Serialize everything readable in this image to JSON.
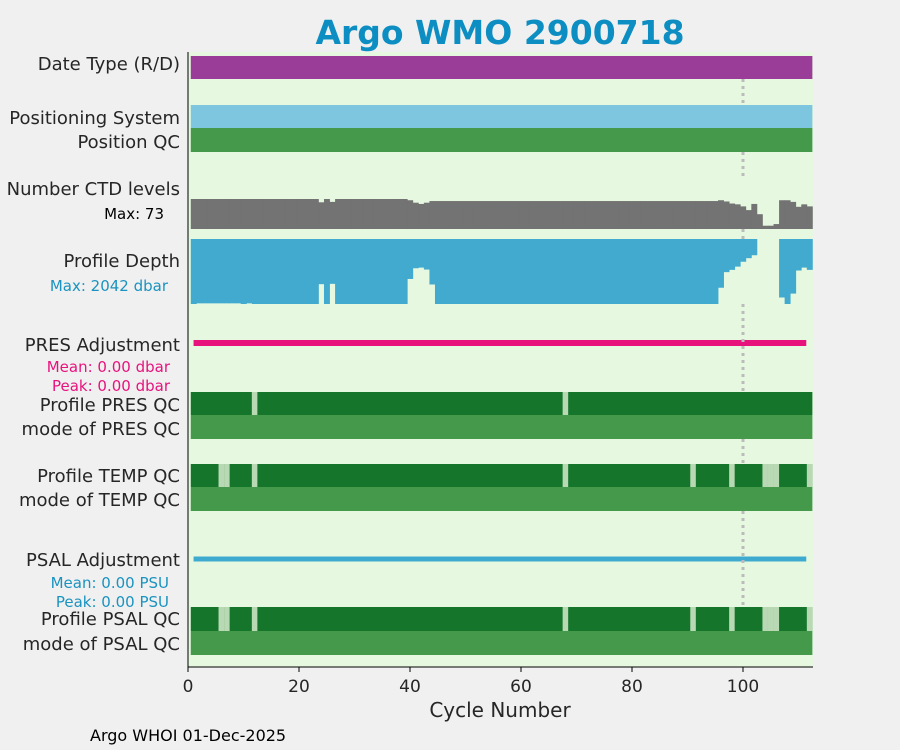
{
  "chart_data": {
    "type": "bar",
    "title": "Argo WMO 2900718",
    "xlabel": "Cycle Number",
    "footer": "Argo WHOI 01-Dec-2025",
    "xlim": [
      0,
      113
    ],
    "xticks": [
      0,
      20,
      40,
      60,
      80,
      100
    ],
    "marker_cycle": 100,
    "colors": {
      "background": "#e6f9e0",
      "date_type": "#993d99",
      "positioning": "#7ec6e0",
      "position_qc": "#44994a",
      "ctd_levels": "#737373",
      "profile_depth": "#42aacf",
      "pres_adjustment": "#e8127d",
      "psal_adjustment": "#3faad0",
      "qc_good": "#14752b",
      "qc_light": "#b8d9b3",
      "qc_mode": "#44994a",
      "title": "#0d8ec2",
      "depth_text": "#1a93c0",
      "pres_text": "#e8127d",
      "psal_text": "#1a93c0"
    },
    "rows": {
      "date_type": "Date Type (R/D)",
      "positioning_system": "Positioning System",
      "position_qc": "Position QC",
      "ctd_levels": "Number CTD levels",
      "profile_depth": "Profile Depth",
      "pres_adjustment": "PRES Adjustment",
      "profile_pres_qc": "Profile PRES QC",
      "mode_pres_qc": "mode of PRES QC",
      "profile_temp_qc": "Profile TEMP QC",
      "mode_temp_qc": "mode of TEMP QC",
      "psal_adjustment": "PSAL Adjustment",
      "profile_psal_qc": "Profile PSAL QC",
      "mode_psal_qc": "mode of PSAL QC"
    },
    "annotations": {
      "ctd_max": "Max: 73",
      "depth_max": "Max: 2042 dbar",
      "pres_mean": "Mean: 0.00 dbar",
      "pres_peak": "Peak: 0.00 dbar",
      "psal_mean": "Mean: 0.00 PSU",
      "psal_peak": "Peak: 0.00 PSU"
    },
    "max_ctd_levels": 73,
    "max_depth_dbar": 2042,
    "ctd_levels": {
      "cycles": [
        1,
        24,
        25,
        26,
        27,
        40,
        41,
        42,
        43,
        44,
        96,
        97,
        98,
        99,
        100,
        101,
        102,
        103,
        104,
        105,
        106,
        107,
        108,
        109,
        110,
        111,
        112
      ],
      "values": [
        73,
        65,
        73,
        66,
        73,
        70,
        64,
        61,
        64,
        68,
        70,
        67,
        62,
        60,
        55,
        46,
        61,
        36,
        8,
        8,
        12,
        70,
        70,
        66,
        54,
        60,
        55
      ]
    },
    "profile_depth": {
      "cycles": [
        1,
        2,
        10,
        11,
        12,
        23,
        24,
        25,
        26,
        27,
        40,
        41,
        42,
        43,
        44,
        45,
        96,
        97,
        98,
        99,
        100,
        101,
        102,
        103,
        104,
        105,
        106,
        107,
        108,
        109,
        110,
        111,
        112
      ],
      "values": [
        2000,
        1980,
        2000,
        1980,
        2000,
        2000,
        1390,
        2000,
        1380,
        2000,
        1230,
        900,
        880,
        940,
        1400,
        2000,
        1500,
        1020,
        950,
        850,
        700,
        590,
        500,
        0,
        -120,
        -200,
        -140,
        1800,
        2000,
        1680,
        970,
        880,
        950
      ]
    },
    "pres_qc_light_cycles": [
      12,
      68
    ],
    "temp_qc_light_cycles": [
      6,
      7,
      12,
      68,
      91,
      98,
      104,
      105,
      106,
      112
    ],
    "psal_qc_light_cycles": [
      6,
      7,
      12,
      68,
      91,
      98,
      104,
      105,
      106,
      112
    ]
  }
}
